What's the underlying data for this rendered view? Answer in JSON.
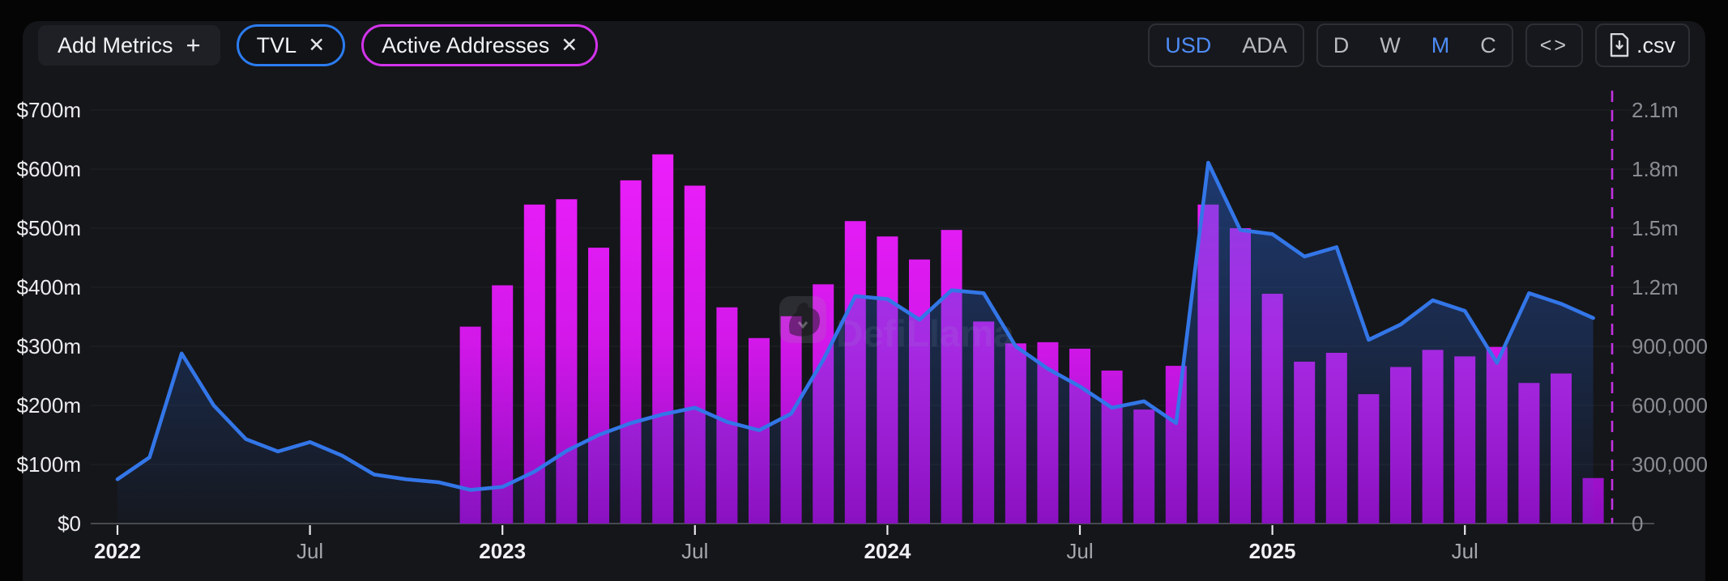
{
  "header": {
    "add_metrics_label": "Add Metrics",
    "add_metrics_plus": "+",
    "chips": [
      {
        "label": "TVL",
        "close": "✕",
        "border_color": "#2b7cf0"
      },
      {
        "label": "Active Addresses",
        "close": "✕",
        "border_color": "#d233eb"
      }
    ],
    "currency_toggle": {
      "selected": "USD",
      "options": [
        "USD",
        "ADA"
      ]
    },
    "period_toggle": {
      "selected": "M",
      "options": [
        "D",
        "W",
        "M",
        "C"
      ]
    },
    "embed_label": "<>",
    "csv_label": ".csv",
    "accent_blue": "#4e8cf6",
    "accent_magenta": "#d233eb"
  },
  "watermark": {
    "text": "DefiLlama",
    "icon": "llama-icon"
  },
  "chart_data": {
    "type": "combo",
    "title": "",
    "x_start": "2022-01",
    "x_end": "2025-11",
    "grid": true,
    "legend_position": "none",
    "x_tick_labels": [
      "2022",
      "Jul",
      "2023",
      "Jul",
      "2024",
      "Jul",
      "2025",
      "Jul"
    ],
    "left_axis": {
      "unit": "USD",
      "labels": [
        "$700m",
        "$600m",
        "$500m",
        "$400m",
        "$300m",
        "$200m",
        "$100m",
        "$0"
      ],
      "min": 0,
      "max": 700000000
    },
    "right_axis": {
      "unit": "addresses",
      "labels": [
        "2.1m",
        "1.8m",
        "1.5m",
        "1.2m",
        "900,000",
        "600,000",
        "300,000",
        "0"
      ],
      "min": 0,
      "max": 2100000
    },
    "series": [
      {
        "name": "TVL",
        "type": "line",
        "axis": "left",
        "color": "#3376e8",
        "start_month_index": 0,
        "values_musd": [
          75,
          112,
          288,
          200,
          143,
          122,
          138,
          115,
          83,
          75,
          70,
          57,
          62,
          88,
          123,
          150,
          170,
          185,
          196,
          172,
          158,
          186,
          277,
          385,
          380,
          345,
          395,
          390,
          300,
          262,
          232,
          196,
          207,
          170,
          611,
          497,
          490,
          452,
          468,
          311,
          337,
          378,
          360,
          272,
          390,
          372,
          348
        ]
      },
      {
        "name": "Active Addresses",
        "type": "bar",
        "axis": "right",
        "color": "#df1df4",
        "start_month_index": 11,
        "values": [
          1000000,
          1210000,
          1620000,
          1647000,
          1401000,
          1743000,
          1875000,
          1716000,
          1098000,
          942000,
          1053000,
          1215000,
          1536000,
          1458000,
          1341000,
          1491000,
          1026000,
          915000,
          921000,
          888000,
          777000,
          579000,
          801000,
          1620000,
          1500000,
          1167000,
          822000,
          867000,
          657000,
          795000,
          882000,
          849000,
          897000,
          714000,
          762000,
          231000
        ]
      }
    ]
  }
}
